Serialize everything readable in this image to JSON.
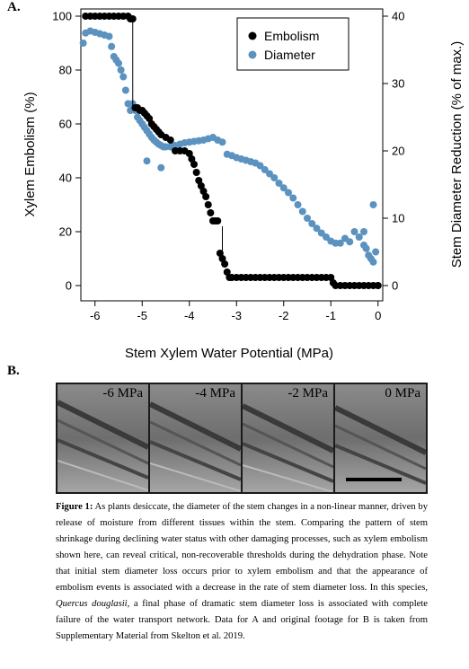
{
  "panel_a_label": "A.",
  "panel_b_label": "B.",
  "chart_data": {
    "type": "scatter",
    "xlabel": "Stem Xylem Water Potential (MPa)",
    "ylabel_left": "Xylem Embolism (%)",
    "ylabel_right": "Stem Diameter Reduction (% of max.)",
    "xlim": [
      -6.3,
      0.1
    ],
    "ylim_left": [
      0,
      100
    ],
    "ylim_right": [
      0,
      40
    ],
    "x_ticks": [
      "-6",
      "-5",
      "-4",
      "-3",
      "-2",
      "-1",
      "0"
    ],
    "y_left_ticks": [
      "0",
      "20",
      "40",
      "60",
      "80",
      "100"
    ],
    "y_right_ticks": [
      "0",
      "10",
      "20",
      "30",
      "40"
    ],
    "legend_position": "top-right",
    "series": [
      {
        "name": "Embolism",
        "color": "#000000",
        "axis": "left",
        "x": [
          -6.2,
          -6.1,
          -6.0,
          -5.9,
          -5.8,
          -5.7,
          -5.6,
          -5.5,
          -5.4,
          -5.3,
          -5.25,
          -5.2,
          -5.15,
          -5.1,
          -5.05,
          -5.0,
          -4.95,
          -4.9,
          -4.85,
          -4.8,
          -4.75,
          -4.7,
          -4.65,
          -4.6,
          -4.5,
          -4.4,
          -4.3,
          -4.2,
          -4.1,
          -4.0,
          -3.95,
          -3.9,
          -3.85,
          -3.8,
          -3.75,
          -3.7,
          -3.65,
          -3.6,
          -3.55,
          -3.5,
          -3.45,
          -3.4,
          -3.35,
          -3.3,
          -3.25,
          -3.2,
          -3.15,
          -3.1,
          -3.0,
          -2.9,
          -2.8,
          -2.7,
          -2.6,
          -2.5,
          -2.4,
          -2.3,
          -2.2,
          -2.1,
          -2.0,
          -1.9,
          -1.8,
          -1.7,
          -1.6,
          -1.5,
          -1.4,
          -1.3,
          -1.2,
          -1.1,
          -1.0,
          -0.95,
          -0.9,
          -0.8,
          -0.7,
          -0.6,
          -0.5,
          -0.4,
          -0.3,
          -0.2,
          -0.1,
          0.0
        ],
        "y": [
          100,
          100,
          100,
          100,
          100,
          100,
          100,
          100,
          100,
          100,
          99,
          99,
          66,
          66,
          65,
          65,
          64,
          63,
          62,
          60,
          59,
          58,
          57,
          56,
          55,
          54,
          50,
          50,
          50,
          49,
          47,
          45,
          42,
          39,
          37,
          35,
          33,
          30,
          27,
          24,
          24,
          24,
          12,
          10,
          8,
          5,
          3,
          3,
          3,
          3,
          3,
          3,
          3,
          3,
          3,
          3,
          3,
          3,
          3,
          3,
          3,
          3,
          3,
          3,
          3,
          3,
          3,
          3,
          3,
          1,
          0,
          0,
          0,
          0,
          0,
          0,
          0,
          0,
          0,
          0
        ]
      },
      {
        "name": "Diameter",
        "color": "#5b92c0",
        "axis": "right",
        "x": [
          -6.25,
          -6.2,
          -6.1,
          -6.0,
          -5.9,
          -5.8,
          -5.7,
          -5.65,
          -5.6,
          -5.55,
          -5.5,
          -5.45,
          -5.4,
          -5.35,
          -5.3,
          -5.25,
          -5.2,
          -5.15,
          -5.1,
          -5.05,
          -5.0,
          -4.95,
          -4.9,
          -4.85,
          -4.8,
          -4.75,
          -4.7,
          -4.65,
          -4.6,
          -4.55,
          -4.5,
          -4.4,
          -4.3,
          -4.2,
          -4.1,
          -4.0,
          -3.9,
          -3.8,
          -3.7,
          -3.6,
          -3.5,
          -3.4,
          -3.3,
          -3.2,
          -3.1,
          -3.0,
          -2.9,
          -2.8,
          -2.7,
          -2.6,
          -2.5,
          -2.4,
          -2.3,
          -2.2,
          -2.1,
          -2.0,
          -1.9,
          -1.8,
          -1.7,
          -1.6,
          -1.5,
          -1.4,
          -1.3,
          -1.2,
          -1.1,
          -1.0,
          -0.9,
          -0.8,
          -0.7,
          -0.6,
          -0.5,
          -0.4,
          -0.3,
          -0.25,
          -0.2,
          -0.15,
          -0.1,
          -0.05,
          0.0,
          -4.9,
          -4.6,
          -0.1,
          -0.3
        ],
        "y": [
          36,
          37.5,
          37.8,
          37.6,
          37.4,
          37.2,
          37.0,
          35.5,
          34,
          33.5,
          33,
          32,
          31,
          29,
          27,
          26,
          27,
          26,
          25,
          24.5,
          24,
          23.5,
          23,
          22.5,
          22,
          21.6,
          21.3,
          21,
          20.8,
          20.6,
          20.6,
          20.6,
          20.8,
          21,
          21.2,
          21.3,
          21.4,
          21.5,
          21.6,
          21.8,
          22,
          21.6,
          21.3,
          19.5,
          19.3,
          19.0,
          18.8,
          18.6,
          18.4,
          18.2,
          17.8,
          17.2,
          16.6,
          16,
          15.2,
          14.5,
          13.8,
          13.0,
          12.0,
          11.0,
          10.0,
          9.2,
          8.5,
          7.8,
          7.2,
          6.6,
          6.3,
          6.3,
          7,
          6.5,
          8,
          7.2,
          6,
          5.5,
          4.5,
          4,
          3.5,
          5,
          0,
          18.5,
          17.5,
          12,
          8
        ]
      }
    ]
  },
  "panel_b": {
    "frames": [
      {
        "label": "-6 MPa"
      },
      {
        "label": "-4 MPa"
      },
      {
        "label": "-2 MPa"
      },
      {
        "label": "0 MPa"
      }
    ]
  },
  "caption": {
    "lead": "Figure 1:",
    "text1": " As plants desiccate, the diameter of the stem changes in a non-linear manner, driven by release of moisture from different tissues within the stem. Comparing the pattern of stem shrinkage during declining water status with other damaging processes, such as xylem embolism shown here, can reveal critical, non-recoverable thresholds during the dehydration phase. Note that initial stem diameter loss occurs prior to xylem embolism and that the appearance of embolism events is associated with a decrease in the rate of stem diameter loss. In this species, ",
    "species": "Quercus douglasii",
    "text2": ", a final phase of dramatic stem diameter loss is associated with complete failure of the water transport network. Data for A and original footage for B is taken from Supplementary Material from Skelton et al. 2019."
  }
}
